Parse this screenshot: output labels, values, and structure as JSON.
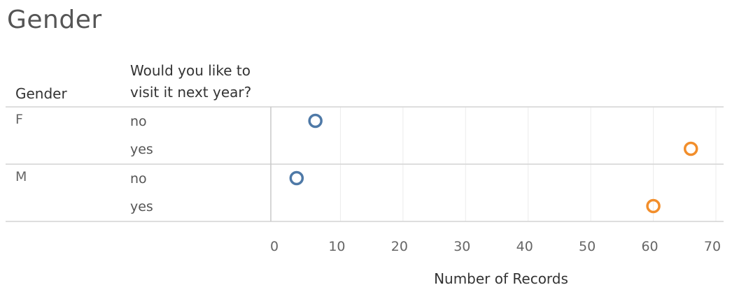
{
  "title": "Gender",
  "headers": {
    "gender": "Gender",
    "visit_line1": "Would you like to",
    "visit_line2": "visit it next year?"
  },
  "chart_data": {
    "type": "scatter",
    "title": "Gender",
    "xlabel": "Number of Records",
    "xlim": [
      0,
      70
    ],
    "xticks": [
      0,
      10,
      20,
      30,
      40,
      50,
      60,
      70
    ],
    "grid": true,
    "marker": "open-circle",
    "groups": [
      {
        "gender": "F",
        "rows": [
          {
            "answer": "no",
            "value": 6,
            "color": "#4e79a7"
          },
          {
            "answer": "yes",
            "value": 66,
            "color": "#f28e2b"
          }
        ]
      },
      {
        "gender": "M",
        "rows": [
          {
            "answer": "no",
            "value": 3,
            "color": "#4e79a7"
          },
          {
            "answer": "yes",
            "value": 60,
            "color": "#f28e2b"
          }
        ]
      }
    ]
  }
}
